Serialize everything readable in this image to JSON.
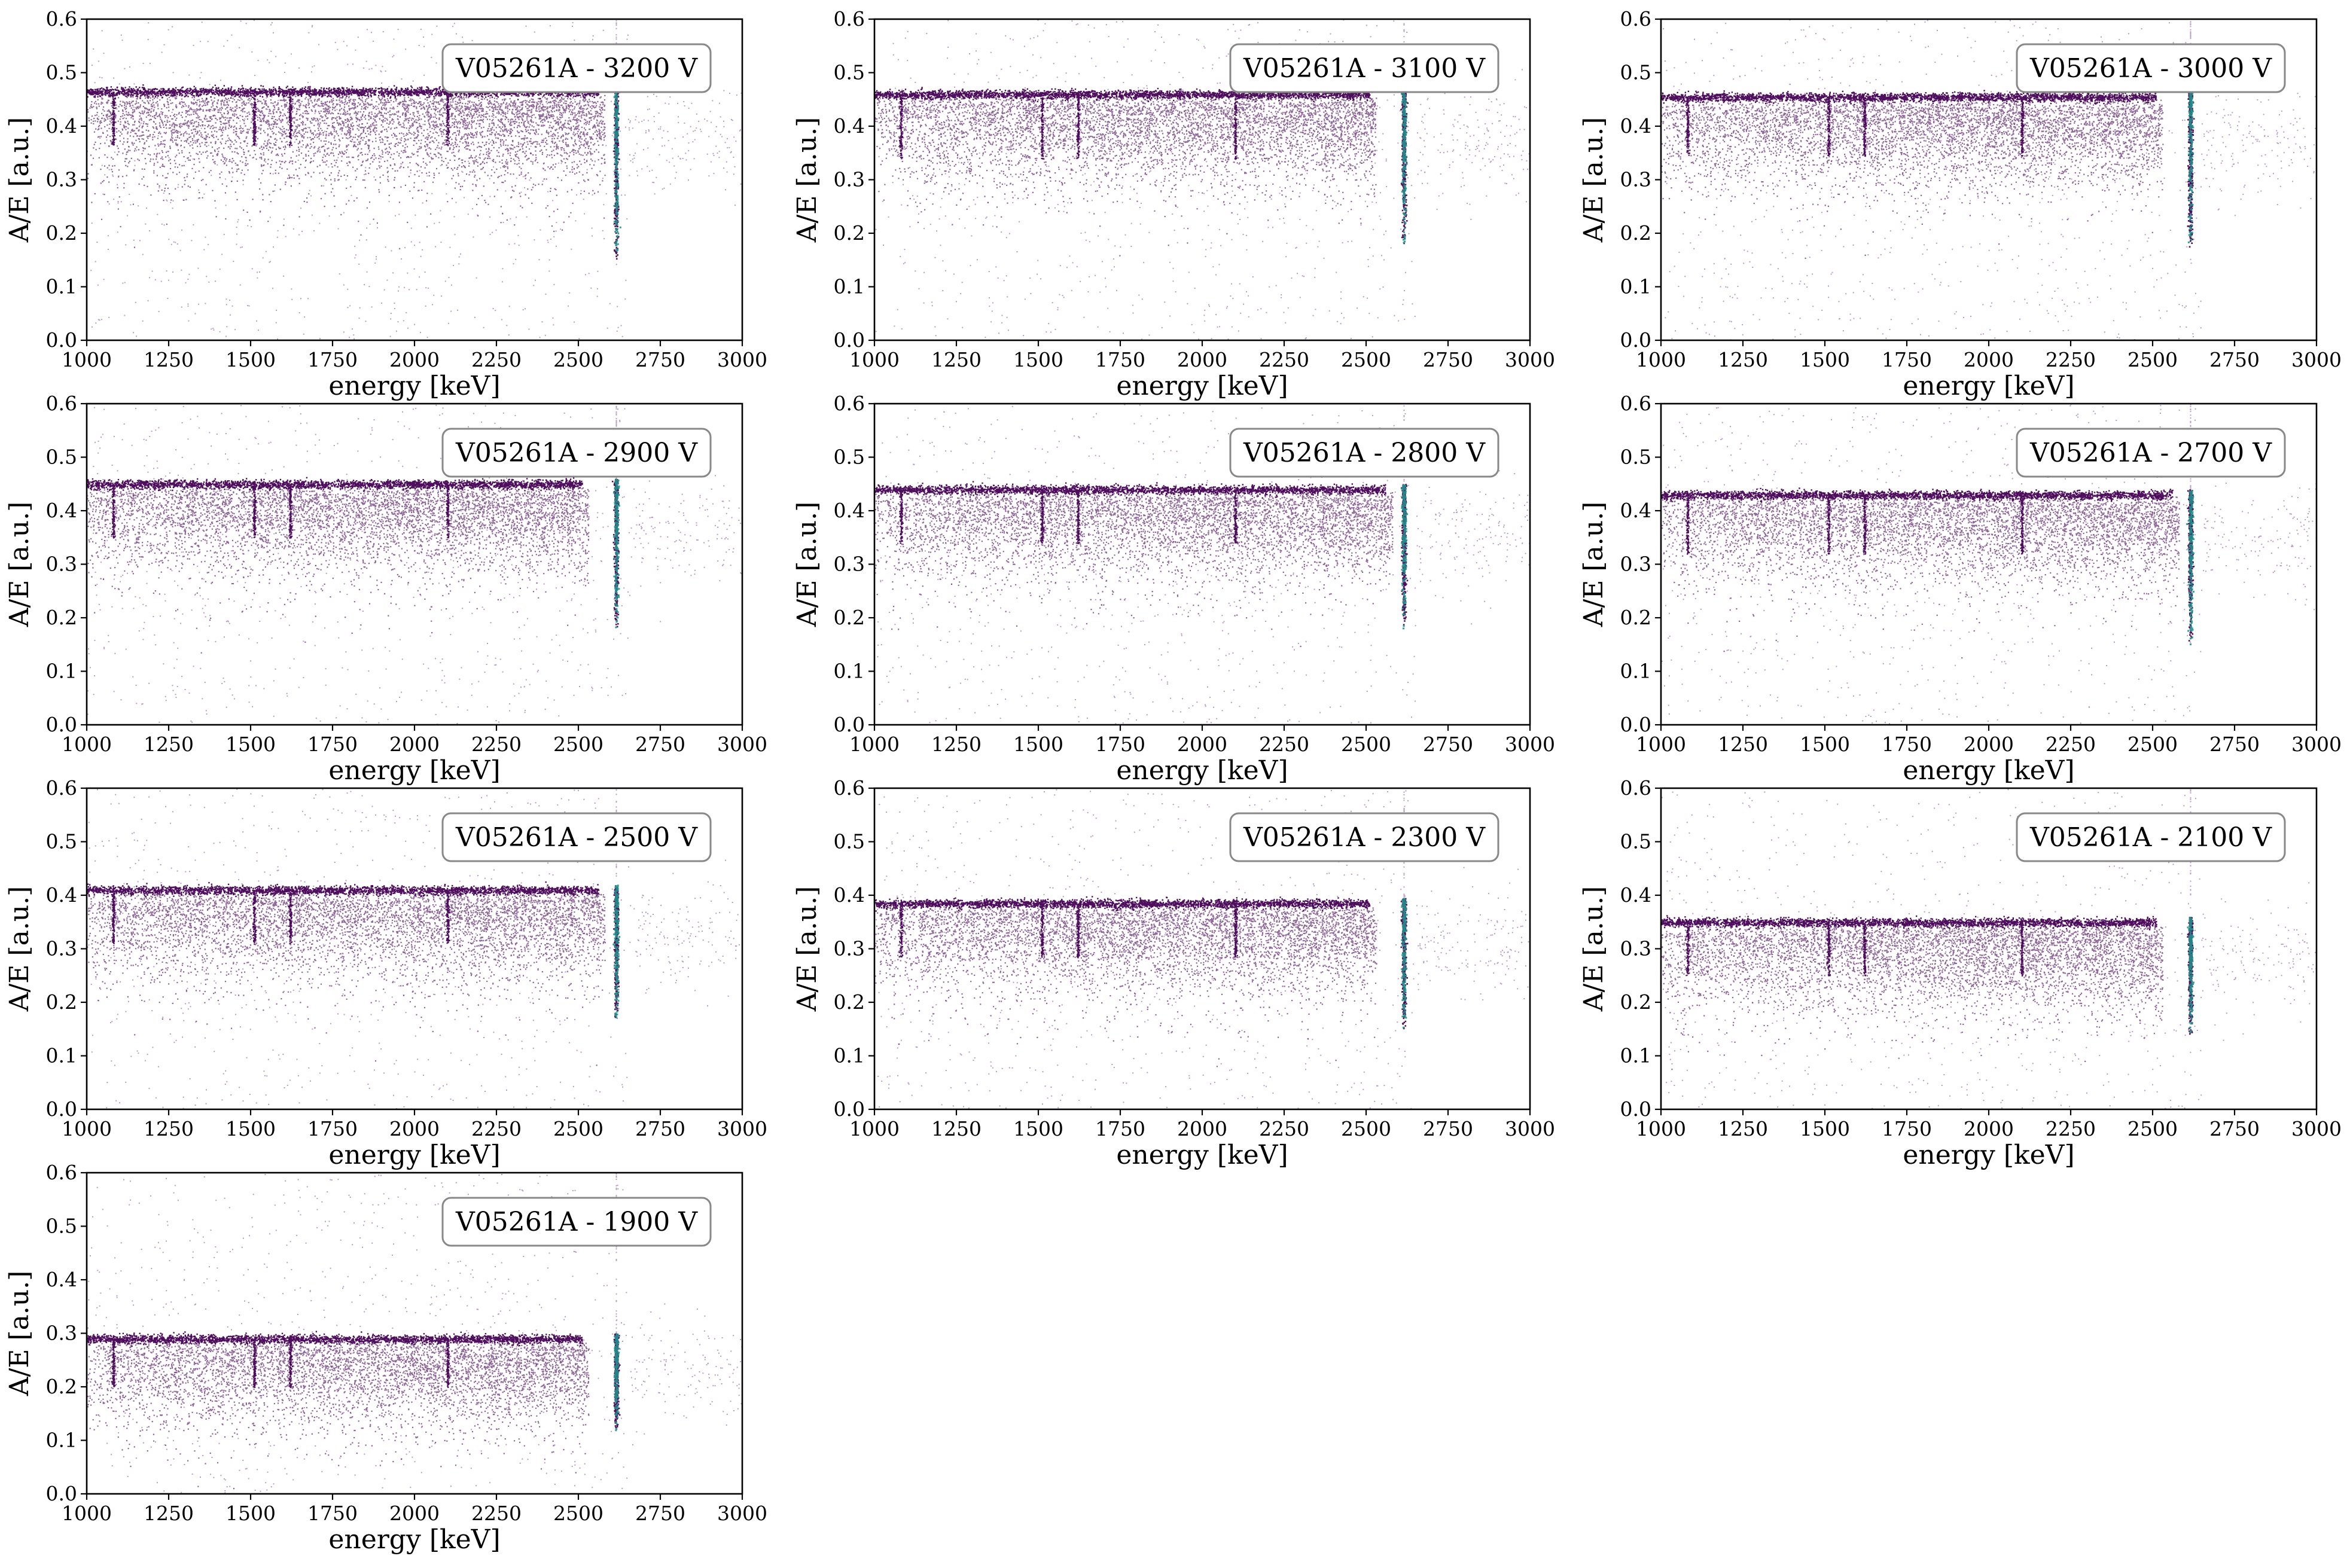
{
  "figure": {
    "colors": {
      "band": "#440154",
      "sparse": "#7b4b8e",
      "peak": "#21918c",
      "frame": "#000000",
      "legend_edge": "#888888"
    }
  },
  "chart_data": [
    {
      "type": "scatter",
      "label": "V05261A - 3200 V",
      "xlabel": "energy [keV]",
      "ylabel": "A/E [a.u.]",
      "xlim": [
        1000,
        3000
      ],
      "ylim": [
        0,
        0.6
      ],
      "xticks": [
        "1000",
        "1250",
        "1500",
        "1750",
        "2000",
        "2250",
        "2500",
        "2750",
        "3000"
      ],
      "yticks": [
        "0.0",
        "0.1",
        "0.2",
        "0.3",
        "0.4",
        "0.5",
        "0.6"
      ],
      "band_ae": 0.465,
      "band_end_kev": 2500,
      "peak_kev": 2614,
      "peak_min_ae": 0.15,
      "dip_lines_kev": [
        1080,
        1510,
        1620,
        2100
      ],
      "dip_depth": 0.1,
      "legend_position": "upper right",
      "grid": false
    },
    {
      "type": "scatter",
      "label": "V05261A - 3100 V",
      "xlabel": "energy [keV]",
      "ylabel": "A/E [a.u.]",
      "xlim": [
        1000,
        3000
      ],
      "ylim": [
        0,
        0.6
      ],
      "xticks": [
        "1000",
        "1250",
        "1500",
        "1750",
        "2000",
        "2250",
        "2500",
        "2750",
        "3000"
      ],
      "yticks": [
        "0.0",
        "0.1",
        "0.2",
        "0.3",
        "0.4",
        "0.5",
        "0.6"
      ],
      "band_ae": 0.46,
      "band_end_kev": 2450,
      "peak_kev": 2614,
      "peak_min_ae": 0.18,
      "dip_lines_kev": [
        1080,
        1510,
        1620,
        2100
      ],
      "dip_depth": 0.12,
      "legend_position": "upper right",
      "grid": false
    },
    {
      "type": "scatter",
      "label": "V05261A - 3000 V",
      "xlabel": "energy [keV]",
      "ylabel": "A/E [a.u.]",
      "xlim": [
        1000,
        3000
      ],
      "ylim": [
        0,
        0.6
      ],
      "xticks": [
        "1000",
        "1250",
        "1500",
        "1750",
        "2000",
        "2250",
        "2500",
        "2750",
        "3000"
      ],
      "yticks": [
        "0.0",
        "0.1",
        "0.2",
        "0.3",
        "0.4",
        "0.5",
        "0.6"
      ],
      "band_ae": 0.455,
      "band_end_kev": 2450,
      "peak_kev": 2614,
      "peak_min_ae": 0.16,
      "dip_lines_kev": [
        1080,
        1510,
        1620,
        2100
      ],
      "dip_depth": 0.11,
      "legend_position": "upper right",
      "grid": false
    },
    {
      "type": "scatter",
      "label": "V05261A - 2900 V",
      "xlabel": "energy [keV]",
      "ylabel": "A/E [a.u.]",
      "xlim": [
        1000,
        3000
      ],
      "ylim": [
        0,
        0.6
      ],
      "xticks": [
        "1000",
        "1250",
        "1500",
        "1750",
        "2000",
        "2250",
        "2500",
        "2750",
        "3000"
      ],
      "yticks": [
        "0.0",
        "0.1",
        "0.2",
        "0.3",
        "0.4",
        "0.5",
        "0.6"
      ],
      "band_ae": 0.45,
      "band_end_kev": 2450,
      "peak_kev": 2614,
      "peak_min_ae": 0.18,
      "dip_lines_kev": [
        1080,
        1510,
        1620,
        2100
      ],
      "dip_depth": 0.1,
      "legend_position": "upper right",
      "grid": false
    },
    {
      "type": "scatter",
      "label": "V05261A - 2800 V",
      "xlabel": "energy [keV]",
      "ylabel": "A/E [a.u.]",
      "xlim": [
        1000,
        3000
      ],
      "ylim": [
        0,
        0.6
      ],
      "xticks": [
        "1000",
        "1250",
        "1500",
        "1750",
        "2000",
        "2250",
        "2500",
        "2750",
        "3000"
      ],
      "yticks": [
        "0.0",
        "0.1",
        "0.2",
        "0.3",
        "0.4",
        "0.5",
        "0.6"
      ],
      "band_ae": 0.44,
      "band_end_kev": 2500,
      "peak_kev": 2614,
      "peak_min_ae": 0.18,
      "dip_lines_kev": [
        1080,
        1510,
        1620,
        2100
      ],
      "dip_depth": 0.1,
      "legend_position": "upper right",
      "grid": false
    },
    {
      "type": "scatter",
      "label": "V05261A - 2700 V",
      "xlabel": "energy [keV]",
      "ylabel": "A/E [a.u.]",
      "xlim": [
        1000,
        3000
      ],
      "ylim": [
        0,
        0.6
      ],
      "xticks": [
        "1000",
        "1250",
        "1500",
        "1750",
        "2000",
        "2250",
        "2500",
        "2750",
        "3000"
      ],
      "yticks": [
        "0.0",
        "0.1",
        "0.2",
        "0.3",
        "0.4",
        "0.5",
        "0.6"
      ],
      "band_ae": 0.43,
      "band_end_kev": 2500,
      "peak_kev": 2614,
      "peak_min_ae": 0.15,
      "dip_lines_kev": [
        1080,
        1510,
        1620,
        2100
      ],
      "dip_depth": 0.11,
      "legend_position": "upper right",
      "grid": false
    },
    {
      "type": "scatter",
      "label": "V05261A - 2500 V",
      "xlabel": "energy [keV]",
      "ylabel": "A/E [a.u.]",
      "xlim": [
        1000,
        3000
      ],
      "ylim": [
        0,
        0.6
      ],
      "xticks": [
        "1000",
        "1250",
        "1500",
        "1750",
        "2000",
        "2250",
        "2500",
        "2750",
        "3000"
      ],
      "yticks": [
        "0.0",
        "0.1",
        "0.2",
        "0.3",
        "0.4",
        "0.5",
        "0.6"
      ],
      "band_ae": 0.41,
      "band_end_kev": 2500,
      "peak_kev": 2614,
      "peak_min_ae": 0.17,
      "dip_lines_kev": [
        1080,
        1510,
        1620,
        2100
      ],
      "dip_depth": 0.1,
      "legend_position": "upper right",
      "grid": false
    },
    {
      "type": "scatter",
      "label": "V05261A - 2300 V",
      "xlabel": "energy [keV]",
      "ylabel": "A/E [a.u.]",
      "xlim": [
        1000,
        3000
      ],
      "ylim": [
        0,
        0.6
      ],
      "xticks": [
        "1000",
        "1250",
        "1500",
        "1750",
        "2000",
        "2250",
        "2500",
        "2750",
        "3000"
      ],
      "yticks": [
        "0.0",
        "0.1",
        "0.2",
        "0.3",
        "0.4",
        "0.5",
        "0.6"
      ],
      "band_ae": 0.385,
      "band_end_kev": 2450,
      "peak_kev": 2614,
      "peak_min_ae": 0.15,
      "dip_lines_kev": [
        1080,
        1510,
        1620,
        2100
      ],
      "dip_depth": 0.1,
      "legend_position": "upper right",
      "grid": false
    },
    {
      "type": "scatter",
      "label": "V05261A - 2100 V",
      "xlabel": "energy [keV]",
      "ylabel": "A/E [a.u.]",
      "xlim": [
        1000,
        3000
      ],
      "ylim": [
        0,
        0.6
      ],
      "xticks": [
        "1000",
        "1250",
        "1500",
        "1750",
        "2000",
        "2250",
        "2500",
        "2750",
        "3000"
      ],
      "yticks": [
        "0.0",
        "0.1",
        "0.2",
        "0.3",
        "0.4",
        "0.5",
        "0.6"
      ],
      "band_ae": 0.35,
      "band_end_kev": 2450,
      "peak_kev": 2614,
      "peak_min_ae": 0.14,
      "dip_lines_kev": [
        1080,
        1510,
        1620,
        2100
      ],
      "dip_depth": 0.1,
      "legend_position": "upper right",
      "grid": false
    },
    {
      "type": "scatter",
      "label": "V05261A - 1900 V",
      "xlabel": "energy [keV]",
      "ylabel": "A/E [a.u.]",
      "xlim": [
        1000,
        3000
      ],
      "ylim": [
        0,
        0.6
      ],
      "xticks": [
        "1000",
        "1250",
        "1500",
        "1750",
        "2000",
        "2250",
        "2500",
        "2750",
        "3000"
      ],
      "yticks": [
        "0.0",
        "0.1",
        "0.2",
        "0.3",
        "0.4",
        "0.5",
        "0.6"
      ],
      "band_ae": 0.29,
      "band_end_kev": 2450,
      "peak_kev": 2614,
      "peak_min_ae": 0.12,
      "dip_lines_kev": [
        1080,
        1510,
        1620,
        2100
      ],
      "dip_depth": 0.09,
      "legend_position": "upper right",
      "grid": false
    }
  ]
}
